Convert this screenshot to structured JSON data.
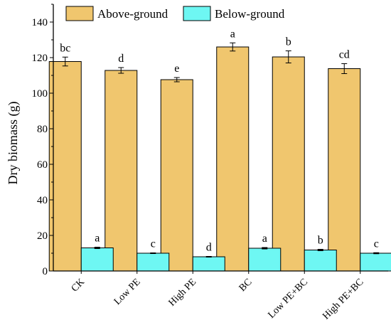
{
  "chart_data": {
    "type": "bar",
    "ylabel": "Dry biomass (g)",
    "xlabel": "",
    "ylim": [
      0,
      150
    ],
    "yticks": [
      0,
      20,
      40,
      60,
      80,
      100,
      120,
      140
    ],
    "categories": [
      "CK",
      "Low PE",
      "High PE",
      "BC",
      "Low PE+BC",
      "High PE+BC"
    ],
    "legend_position": "top",
    "grid": false,
    "series": [
      {
        "name": "Above-ground",
        "color": "#F0C66E",
        "values": [
          117.8,
          112.8,
          107.6,
          126.0,
          120.4,
          113.8
        ],
        "errors": [
          2.5,
          1.6,
          1.2,
          2.3,
          3.4,
          2.8
        ],
        "labels": [
          "bc",
          "d",
          "e",
          "a",
          "b",
          "cd"
        ]
      },
      {
        "name": "Below-ground",
        "color": "#6EF7F3",
        "values": [
          13.0,
          10.0,
          8.0,
          12.8,
          11.8,
          10.0
        ],
        "errors": [
          0.4,
          0.2,
          0.2,
          0.4,
          0.4,
          0.3
        ],
        "labels": [
          "a",
          "c",
          "d",
          "a",
          "b",
          "c"
        ]
      }
    ]
  }
}
